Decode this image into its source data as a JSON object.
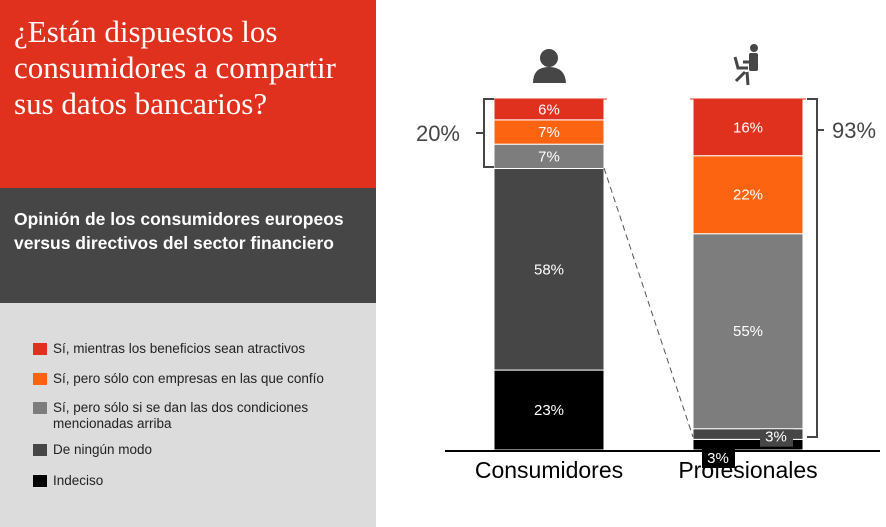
{
  "title": "¿Están dispuestos los consumidores a compartir sus datos bancarios?",
  "subtitle": "Opinión de los consumidores europeos versus directivos del sector financiero",
  "chart_data": {
    "type": "bar",
    "stacked": true,
    "categories": [
      "Consumidores",
      "Profesionales"
    ],
    "series": [
      {
        "name": "Indeciso",
        "color": "#000000",
        "values": [
          23,
          3
        ]
      },
      {
        "name": "De ningún modo",
        "color": "#464646",
        "values": [
          58,
          3
        ]
      },
      {
        "name": "Sí, pero sólo si se dan las dos condiciones mencionadas arriba",
        "color": "#7d7d7d",
        "values": [
          7,
          55
        ]
      },
      {
        "name": "Sí, pero sólo con empresas en las que confío",
        "color": "#fd6412",
        "values": [
          7,
          22
        ]
      },
      {
        "name": "Sí, mientras los beneficios sean atractivos",
        "color": "#e0301e",
        "values": [
          6,
          16
        ]
      }
    ],
    "labels": [
      [
        "23%",
        "58%",
        "7%",
        "7%",
        "6%"
      ],
      [
        "3%",
        "3%",
        "55%",
        "22%",
        "16%"
      ]
    ],
    "bracket_totals": [
      "20%",
      "93%"
    ],
    "icons": [
      "person-icon",
      "person-laptop-icon"
    ]
  }
}
